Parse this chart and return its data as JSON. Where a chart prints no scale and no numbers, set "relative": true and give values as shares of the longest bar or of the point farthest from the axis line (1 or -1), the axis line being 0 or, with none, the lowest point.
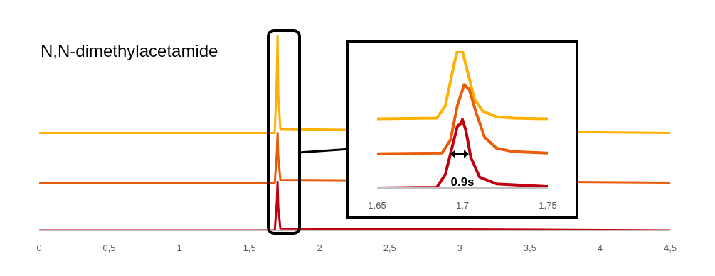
{
  "chart_data": [
    {
      "type": "line",
      "title": "N,N-dimethylacetamide",
      "relative": true,
      "xlim": [
        0,
        4.5
      ],
      "xticks": [
        0,
        {
          "value": 0.5,
          "label": "0,5"
        },
        1,
        {
          "value": 1.5,
          "label": "1,5"
        },
        2,
        {
          "value": 2.5,
          "label": "2,5"
        },
        3,
        {
          "value": 3.5,
          "label": "3,5"
        },
        4,
        {
          "value": 4.5,
          "label": "4,5"
        }
      ],
      "series": [
        {
          "color": "#ffb000",
          "x": [
            0,
            1.68,
            1.695,
            1.7,
            1.705,
            1.72,
            4.5
          ],
          "values": [
            0.5,
            0.5,
            0.8,
            1,
            0.7,
            0.52,
            0.5
          ]
        },
        {
          "color": "#e85c0a",
          "x": [
            0,
            1.68,
            1.695,
            1.7,
            1.705,
            1.72,
            4.5
          ],
          "values": [
            0.245,
            0.245,
            0.4,
            0.5,
            0.38,
            0.26,
            0.245
          ]
        },
        {
          "color": "#c00010",
          "x": [
            0,
            1.68,
            1.695,
            1.7,
            1.705,
            1.72,
            4.5
          ],
          "values": [
            0,
            0,
            0.15,
            0.25,
            0.12,
            0.01,
            0
          ]
        }
      ]
    },
    {
      "type": "line",
      "relative": true,
      "xlim": [
        1.65,
        1.75
      ],
      "xticks": [
        {
          "value": 1.65,
          "label": "1,65"
        },
        {
          "value": 1.7,
          "label": "1,7"
        },
        {
          "value": 1.75,
          "label": "1,75"
        }
      ],
      "annotations": [
        "0.9s"
      ],
      "series": [
        {
          "color": "#ffb000",
          "x": [
            1.65,
            1.685,
            1.69,
            1.695,
            1.697,
            1.7,
            1.703,
            1.707,
            1.712,
            1.72,
            1.73,
            1.75
          ],
          "values": [
            0.505,
            0.51,
            0.6,
            0.9,
            1,
            1,
            0.85,
            0.65,
            0.56,
            0.52,
            0.51,
            0.505
          ]
        },
        {
          "color": "#e85c0a",
          "x": [
            1.65,
            1.688,
            1.693,
            1.697,
            1.701,
            1.704,
            1.708,
            1.713,
            1.72,
            1.73,
            1.75
          ],
          "values": [
            0.25,
            0.255,
            0.35,
            0.6,
            0.755,
            0.72,
            0.55,
            0.37,
            0.29,
            0.265,
            0.255
          ]
        },
        {
          "color": "#c00010",
          "x": [
            1.65,
            1.685,
            1.69,
            1.694,
            1.697,
            1.699,
            1.7,
            1.702,
            1.705,
            1.71,
            1.72,
            1.75
          ],
          "values": [
            0,
            0.005,
            0.1,
            0.3,
            0.45,
            0.47,
            0.5,
            0.42,
            0.22,
            0.08,
            0.03,
            0.01
          ]
        }
      ]
    }
  ]
}
